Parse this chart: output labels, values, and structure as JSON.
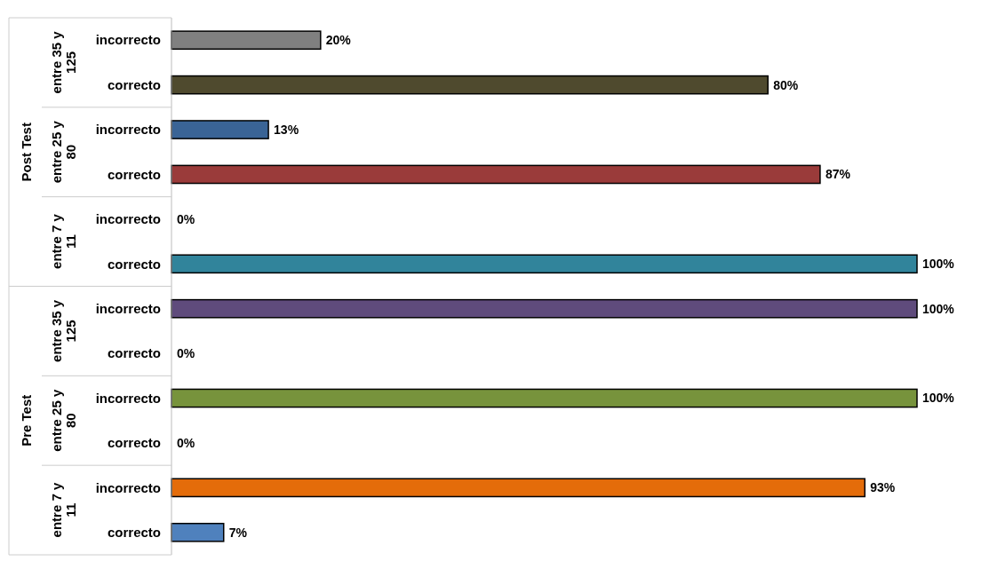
{
  "chart_data": {
    "type": "bar",
    "orientation": "horizontal",
    "categories": [
      "incorrecto",
      "correcto",
      "incorrecto",
      "correcto",
      "incorrecto",
      "correcto",
      "incorrecto",
      "correcto",
      "incorrecto",
      "correcto",
      "incorrecto",
      "correcto"
    ],
    "values": [
      20,
      80,
      13,
      87,
      0,
      100,
      100,
      0,
      100,
      0,
      93,
      7
    ],
    "value_labels": [
      "20%",
      "80%",
      "13%",
      "87%",
      "0%",
      "100%",
      "100%",
      "0%",
      "100%",
      "0%",
      "93%",
      "7%"
    ],
    "colors": [
      "#808080",
      "#4f4a2e",
      "#3a6496",
      "#9a3b3a",
      "#4bacc6",
      "#31849b",
      "#5f4b7c",
      "#8064a2",
      "#77933c",
      "#c0504d",
      "#e46c0a",
      "#4f81bd"
    ],
    "xlim": [
      0,
      100
    ],
    "annotations": [
      "entre 35 y 125",
      "entre 25 y 80",
      "entre 7 y 11",
      "entre 35 y 125",
      "entre 25 y 80",
      "entre 7 y 11",
      "Post Test",
      "Pre Test"
    ]
  }
}
